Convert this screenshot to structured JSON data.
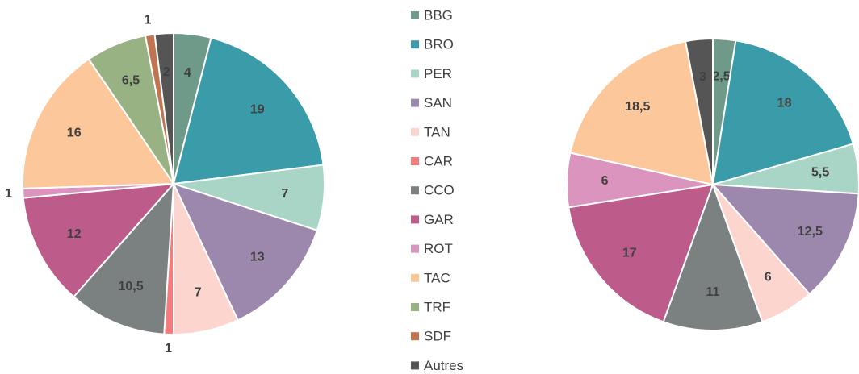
{
  "chart_data": [
    {
      "type": "pie",
      "categories": [
        "BBG",
        "BRO",
        "PER",
        "SAN",
        "TAN",
        "CAR",
        "CCO",
        "GAR",
        "ROT",
        "TAC",
        "TRF",
        "SDF",
        "Autres"
      ],
      "colors": [
        "#6f9a8a",
        "#3a9ca8",
        "#a8d5c6",
        "#9c88ac",
        "#fdd5cf",
        "#f47c7c",
        "#7b8080",
        "#bd5b8a",
        "#db94bd",
        "#fcc89b",
        "#98b284",
        "#c07552",
        "#555555"
      ],
      "values": [
        4,
        19,
        7,
        13,
        7,
        1,
        10.5,
        12,
        1,
        16,
        6.5,
        1,
        2
      ],
      "value_labels": [
        "4",
        "19",
        "7",
        "13",
        "7",
        "1",
        "10,5",
        "12",
        "1",
        "16",
        "6,5",
        "1",
        "2"
      ]
    },
    {
      "type": "pie",
      "categories": [
        "BBG",
        "BRO",
        "PER",
        "SAN",
        "TAN",
        "CCO",
        "GAR",
        "ROT",
        "TAC",
        "Autres"
      ],
      "colors": [
        "#6f9a8a",
        "#3a9ca8",
        "#a8d5c6",
        "#9c88ac",
        "#fdd5cf",
        "#7b8080",
        "#bd5b8a",
        "#db94bd",
        "#fcc89b",
        "#555555"
      ],
      "values": [
        2.5,
        18,
        5.5,
        12.5,
        6,
        11,
        17,
        6,
        18.5,
        3
      ],
      "value_labels": [
        "2,5",
        "18",
        "5,5",
        "12,5",
        "6",
        "11",
        "17",
        "6",
        "18,5",
        "3"
      ]
    }
  ]
}
